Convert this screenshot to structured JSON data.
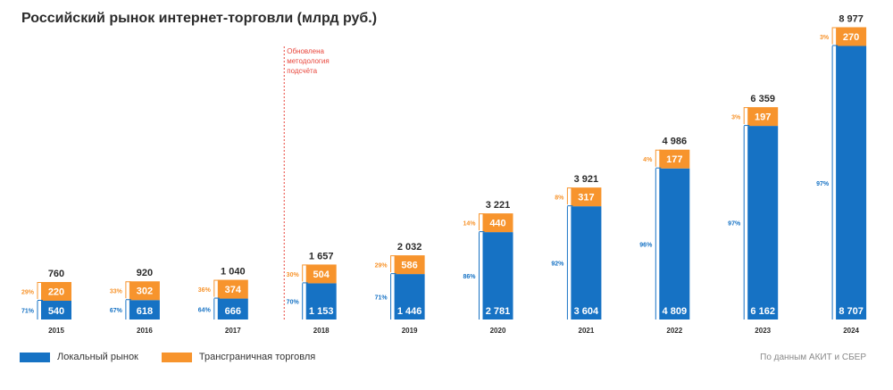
{
  "chart_data": {
    "type": "bar",
    "stacked": true,
    "title": "Российский рынок интернет-торговли (млрд руб.)",
    "categories": [
      "2015",
      "2016",
      "2017",
      "2018",
      "2019",
      "2020",
      "2021",
      "2022",
      "2023",
      "2024"
    ],
    "series": [
      {
        "name": "Локальный рынок",
        "values": [
          540,
          618,
          666,
          1153,
          1446,
          2781,
          3604,
          4809,
          6162,
          8707
        ],
        "value_labels": [
          "540",
          "618",
          "666",
          "1 153",
          "1 446",
          "2 781",
          "3 604",
          "4 809",
          "6 162",
          "8 707"
        ],
        "share_labels": [
          "71%",
          "67%",
          "64%",
          "70%",
          "71%",
          "86%",
          "92%",
          "96%",
          "97%",
          "97%"
        ],
        "color": "#1672c4"
      },
      {
        "name": "Трансграничная торговля",
        "values": [
          220,
          302,
          374,
          504,
          586,
          440,
          317,
          177,
          197,
          270
        ],
        "value_labels": [
          "220",
          "302",
          "374",
          "504",
          "586",
          "440",
          "317",
          "177",
          "197",
          "270"
        ],
        "share_labels": [
          "29%",
          "33%",
          "36%",
          "30%",
          "29%",
          "14%",
          "8%",
          "4%",
          "3%",
          "3%"
        ],
        "color": "#f7942d"
      }
    ],
    "totals": [
      760,
      920,
      1040,
      1657,
      2032,
      3221,
      3921,
      4986,
      6359,
      8977
    ],
    "total_labels": [
      "760",
      "920",
      "1 040",
      "1 657",
      "2 032",
      "3 221",
      "3 921",
      "4 986",
      "6 359",
      "8 977"
    ],
    "annotation": {
      "lines": [
        "Обновлена",
        "методология",
        "подсчёта"
      ],
      "between": [
        "2017",
        "2018"
      ],
      "color": "#e8463c"
    },
    "legend_position": "bottom-left",
    "grid": false,
    "value_colors": {
      "total": "#2b2b2b",
      "local_share": "#1672c4",
      "cross_share": "#f7942d",
      "category": "#2b2b2b"
    }
  },
  "legend": [
    {
      "label": "Локальный рынок",
      "color": "#1672c4"
    },
    {
      "label": "Трансграничная торговля",
      "color": "#f7942d"
    }
  ],
  "source": "По данным АКИТ и СБЕР"
}
